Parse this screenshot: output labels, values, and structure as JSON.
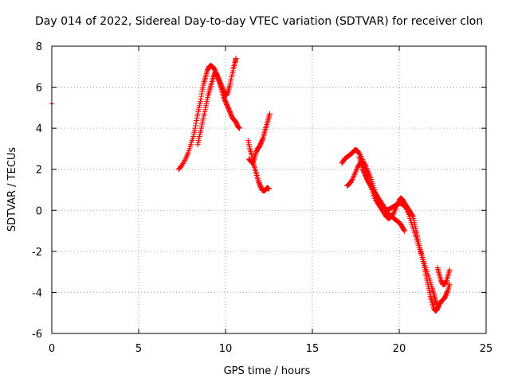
{
  "chart_data": {
    "type": "scatter",
    "title": "Day 014 of 2022, Sidereal Day-to-day VTEC variation (SDTVAR) for receiver clon",
    "xlabel": "GPS time / hours",
    "ylabel": "SDTVAR / TECUs",
    "xlim": [
      0,
      25
    ],
    "ylim": [
      -6,
      8
    ],
    "xticks": [
      0,
      5,
      10,
      15,
      20,
      25
    ],
    "yticks": [
      -6,
      -4,
      -2,
      0,
      2,
      4,
      6,
      8
    ],
    "grid": true,
    "legend": "none",
    "marker": "plus",
    "color": "#ff0000",
    "series": [
      {
        "points": [
          [
            0.0,
            5.2
          ],
          [
            7.3,
            2.0
          ],
          [
            7.5,
            2.2
          ],
          [
            7.7,
            2.5
          ],
          [
            7.85,
            2.8
          ],
          [
            8.0,
            3.2
          ],
          [
            8.15,
            3.6
          ],
          [
            8.25,
            4.0
          ],
          [
            8.35,
            4.5
          ],
          [
            8.45,
            4.9
          ],
          [
            8.55,
            5.3
          ],
          [
            8.65,
            5.8
          ],
          [
            8.75,
            6.2
          ],
          [
            8.85,
            6.5
          ],
          [
            8.95,
            6.8
          ],
          [
            9.05,
            7.0
          ],
          [
            9.15,
            7.05
          ],
          [
            9.25,
            7.0
          ],
          [
            9.35,
            6.9
          ],
          [
            9.45,
            6.7
          ],
          [
            9.55,
            6.5
          ],
          [
            9.65,
            6.3
          ],
          [
            9.75,
            6.1
          ],
          [
            9.85,
            5.9
          ],
          [
            9.95,
            5.7
          ],
          [
            10.05,
            5.6
          ],
          [
            10.15,
            5.8
          ],
          [
            10.25,
            6.1
          ],
          [
            10.35,
            6.5
          ],
          [
            10.45,
            6.9
          ],
          [
            10.55,
            7.2
          ],
          [
            10.6,
            7.4
          ],
          [
            8.4,
            3.2
          ],
          [
            8.5,
            3.6
          ],
          [
            8.6,
            4.0
          ],
          [
            8.7,
            4.4
          ],
          [
            8.8,
            4.8
          ],
          [
            8.9,
            5.2
          ],
          [
            9.0,
            5.6
          ],
          [
            9.1,
            5.9
          ],
          [
            9.2,
            6.2
          ],
          [
            9.3,
            6.5
          ],
          [
            9.4,
            6.7
          ],
          [
            9.5,
            6.6
          ],
          [
            9.6,
            6.4
          ],
          [
            9.7,
            6.1
          ],
          [
            9.8,
            5.8
          ],
          [
            9.9,
            5.5
          ],
          [
            10.0,
            5.3
          ],
          [
            10.1,
            5.1
          ],
          [
            10.2,
            4.9
          ],
          [
            10.3,
            4.7
          ],
          [
            10.4,
            4.5
          ],
          [
            10.5,
            4.4
          ],
          [
            10.6,
            4.3
          ],
          [
            10.7,
            4.1
          ],
          [
            10.8,
            4.0
          ],
          [
            11.3,
            3.4
          ],
          [
            11.4,
            3.0
          ],
          [
            11.5,
            2.7
          ],
          [
            11.6,
            2.3
          ],
          [
            11.7,
            2.0
          ],
          [
            11.8,
            1.7
          ],
          [
            11.9,
            1.4
          ],
          [
            12.0,
            1.2
          ],
          [
            12.1,
            1.0
          ],
          [
            12.2,
            0.95
          ],
          [
            12.3,
            1.0
          ],
          [
            12.4,
            1.1
          ],
          [
            12.5,
            1.05
          ],
          [
            11.35,
            2.5
          ],
          [
            11.45,
            2.4
          ],
          [
            11.55,
            2.3
          ],
          [
            11.65,
            2.5
          ],
          [
            11.75,
            2.8
          ],
          [
            11.85,
            3.0
          ],
          [
            11.95,
            3.1
          ],
          [
            12.05,
            3.3
          ],
          [
            12.15,
            3.5
          ],
          [
            12.25,
            3.8
          ],
          [
            12.35,
            4.1
          ],
          [
            12.45,
            4.4
          ],
          [
            12.55,
            4.7
          ],
          [
            16.7,
            2.3
          ],
          [
            16.85,
            2.5
          ],
          [
            17.0,
            2.6
          ],
          [
            17.15,
            2.7
          ],
          [
            17.3,
            2.8
          ],
          [
            17.45,
            2.95
          ],
          [
            17.6,
            2.9
          ],
          [
            17.75,
            2.7
          ],
          [
            17.9,
            2.4
          ],
          [
            18.05,
            2.0
          ],
          [
            18.2,
            1.6
          ],
          [
            18.35,
            1.2
          ],
          [
            18.5,
            0.8
          ],
          [
            18.65,
            0.5
          ],
          [
            18.8,
            0.3
          ],
          [
            18.95,
            0.1
          ],
          [
            19.1,
            -0.1
          ],
          [
            19.25,
            -0.3
          ],
          [
            19.4,
            -0.4
          ],
          [
            19.55,
            -0.3
          ],
          [
            19.7,
            -0.1
          ],
          [
            19.85,
            0.2
          ],
          [
            20.0,
            0.5
          ],
          [
            20.1,
            0.6
          ],
          [
            20.2,
            0.5
          ],
          [
            20.35,
            0.3
          ],
          [
            20.5,
            0.1
          ],
          [
            20.65,
            -0.1
          ],
          [
            20.8,
            -0.3
          ],
          [
            20.9,
            -0.7
          ],
          [
            21.0,
            -1.1
          ],
          [
            21.1,
            -1.5
          ],
          [
            21.2,
            -1.9
          ],
          [
            21.3,
            -2.2
          ],
          [
            21.4,
            -2.6
          ],
          [
            21.5,
            -3.0
          ],
          [
            21.6,
            -3.4
          ],
          [
            21.7,
            -3.8
          ],
          [
            21.8,
            -4.2
          ],
          [
            21.9,
            -4.5
          ],
          [
            22.0,
            -4.8
          ],
          [
            22.1,
            -4.9
          ],
          [
            22.2,
            -4.8
          ],
          [
            22.3,
            -4.6
          ],
          [
            22.45,
            -4.4
          ],
          [
            22.6,
            -4.3
          ],
          [
            22.7,
            -4.1
          ],
          [
            22.8,
            -3.9
          ],
          [
            22.9,
            -3.6
          ],
          [
            17.7,
            2.6
          ],
          [
            17.8,
            2.3
          ],
          [
            17.9,
            2.0
          ],
          [
            18.0,
            1.8
          ],
          [
            18.1,
            1.6
          ],
          [
            18.2,
            1.4
          ],
          [
            18.35,
            1.2
          ],
          [
            18.5,
            1.0
          ],
          [
            18.65,
            0.8
          ],
          [
            18.8,
            0.6
          ],
          [
            18.95,
            0.4
          ],
          [
            19.1,
            0.2
          ],
          [
            19.25,
            0.0
          ],
          [
            19.4,
            -0.2
          ],
          [
            19.55,
            -0.3
          ],
          [
            19.7,
            -0.4
          ],
          [
            19.85,
            -0.5
          ],
          [
            20.0,
            -0.6
          ],
          [
            20.1,
            -0.7
          ],
          [
            20.2,
            -0.85
          ],
          [
            20.3,
            -1.0
          ],
          [
            17.0,
            1.2
          ],
          [
            17.15,
            1.3
          ],
          [
            17.3,
            1.5
          ],
          [
            17.45,
            1.8
          ],
          [
            17.6,
            2.1
          ],
          [
            17.75,
            2.3
          ],
          [
            17.9,
            2.4
          ],
          [
            18.05,
            2.2
          ],
          [
            18.2,
            1.9
          ],
          [
            18.35,
            1.6
          ],
          [
            18.5,
            1.2
          ],
          [
            18.65,
            0.8
          ],
          [
            18.8,
            0.4
          ],
          [
            18.95,
            0.2
          ],
          [
            19.1,
            0.1
          ],
          [
            19.25,
            0.0
          ],
          [
            19.4,
            0.05
          ],
          [
            19.6,
            0.15
          ],
          [
            19.8,
            0.25
          ],
          [
            20.0,
            0.35
          ],
          [
            20.2,
            0.3
          ],
          [
            20.4,
            0.1
          ],
          [
            20.55,
            -0.2
          ],
          [
            20.7,
            -0.6
          ],
          [
            20.85,
            -1.0
          ],
          [
            21.0,
            -1.4
          ],
          [
            21.15,
            -1.8
          ],
          [
            21.3,
            -2.2
          ],
          [
            21.45,
            -2.6
          ],
          [
            21.6,
            -3.0
          ],
          [
            21.75,
            -3.4
          ],
          [
            21.9,
            -3.8
          ],
          [
            22.0,
            -4.1
          ],
          [
            22.1,
            -4.4
          ],
          [
            22.15,
            -4.6
          ],
          [
            22.2,
            -2.8
          ],
          [
            22.3,
            -3.1
          ],
          [
            22.4,
            -3.4
          ],
          [
            22.5,
            -3.6
          ],
          [
            22.6,
            -3.6
          ],
          [
            22.7,
            -3.5
          ],
          [
            22.8,
            -3.2
          ],
          [
            22.9,
            -2.9
          ]
        ]
      }
    ]
  }
}
